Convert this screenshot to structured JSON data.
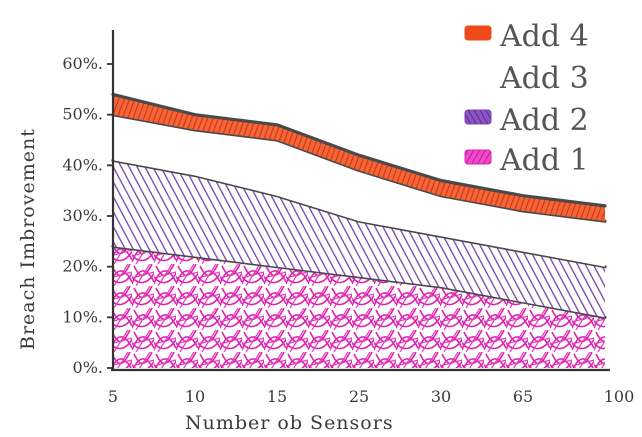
{
  "chart_data": {
    "type": "area",
    "title": "",
    "xlabel": "Number ob Sensors",
    "ylabel": "Breach Imbrovement",
    "categories": [
      "5",
      "10",
      "15",
      "25",
      "30",
      "65",
      "100"
    ],
    "y_ticks": [
      "0%.",
      "10%.",
      "20%.",
      "30%.",
      "40%.",
      "50%.",
      "60%."
    ],
    "ylim": [
      0,
      60
    ],
    "grid": false,
    "legend_position": "top-right",
    "series": [
      {
        "name": "Add 1",
        "color": "#e020b0",
        "hatch": "scribble",
        "values": [
          24,
          22,
          20,
          18,
          16,
          13,
          10
        ]
      },
      {
        "name": "Add 2",
        "color": "#7a3fb0",
        "hatch": "diagonal",
        "values": [
          41,
          38,
          34,
          29,
          26,
          23,
          20
        ]
      },
      {
        "name": "Add 3",
        "color": "#ffffff",
        "hatch": "none",
        "values": [
          50,
          47,
          45,
          39,
          34,
          31,
          29
        ]
      },
      {
        "name": "Add 4",
        "color": "#ee4a1a",
        "hatch": "dense",
        "values": [
          54,
          50,
          48,
          42,
          37,
          34,
          32
        ]
      }
    ],
    "legend_order": [
      "Add 4",
      "Add 3",
      "Add 2",
      "Add 1"
    ]
  }
}
